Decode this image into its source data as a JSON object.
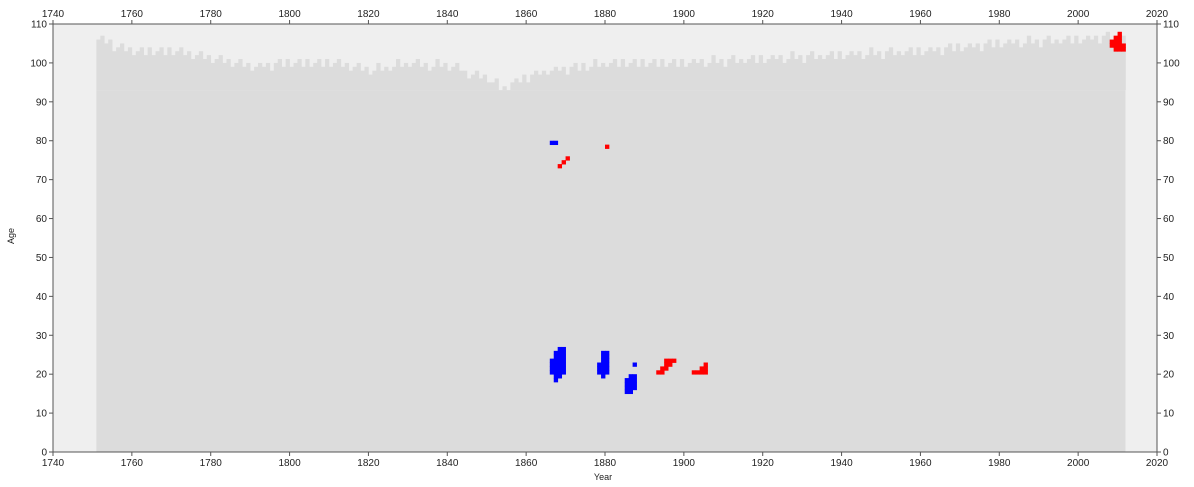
{
  "chart_data": {
    "type": "heatmap",
    "title": "",
    "xlabel": "Year",
    "ylabel": "Age",
    "xlim": [
      1740,
      2020
    ],
    "ylim": [
      0,
      110
    ],
    "x_ticks": [
      1740,
      1760,
      1780,
      1800,
      1820,
      1840,
      1860,
      1880,
      1900,
      1920,
      1940,
      1960,
      1980,
      2000,
      2020
    ],
    "y_ticks": [
      0,
      10,
      20,
      30,
      40,
      50,
      60,
      70,
      80,
      90,
      100,
      110
    ],
    "grid": false,
    "legend": "none",
    "colors": {
      "data_available": "#dcdcdc",
      "no_data": "#efefef",
      "positive_cluster": "#ff0000",
      "negative_cluster": "#0000ff",
      "axis": "#555555"
    },
    "data_coverage": {
      "years": [
        1751,
        2011
      ],
      "max_age_profile": [
        [
          1751,
          106
        ],
        [
          1760,
          103
        ],
        [
          1770,
          103
        ],
        [
          1780,
          101
        ],
        [
          1790,
          99
        ],
        [
          1800,
          100
        ],
        [
          1810,
          100
        ],
        [
          1820,
          98
        ],
        [
          1830,
          100
        ],
        [
          1840,
          99
        ],
        [
          1850,
          96
        ],
        [
          1854,
          93
        ],
        [
          1858,
          96
        ],
        [
          1865,
          98
        ],
        [
          1880,
          100
        ],
        [
          1900,
          100
        ],
        [
          1920,
          101
        ],
        [
          1940,
          102
        ],
        [
          1960,
          103
        ],
        [
          1980,
          105
        ],
        [
          2000,
          106
        ],
        [
          2011,
          107
        ]
      ]
    },
    "clusters": [
      {
        "color": "negative",
        "points": [
          [
            1866,
            79
          ],
          [
            1867,
            79
          ],
          [
            1867,
            18
          ],
          [
            1867,
            19
          ],
          [
            1867,
            20
          ],
          [
            1867,
            21
          ],
          [
            1867,
            22
          ],
          [
            1867,
            23
          ],
          [
            1867,
            24
          ],
          [
            1867,
            25
          ],
          [
            1868,
            19
          ],
          [
            1868,
            20
          ],
          [
            1868,
            21
          ],
          [
            1868,
            22
          ],
          [
            1868,
            23
          ],
          [
            1868,
            24
          ],
          [
            1868,
            25
          ],
          [
            1868,
            26
          ],
          [
            1869,
            20
          ],
          [
            1869,
            21
          ],
          [
            1869,
            22
          ],
          [
            1869,
            23
          ],
          [
            1869,
            24
          ],
          [
            1869,
            25
          ],
          [
            1869,
            26
          ],
          [
            1866,
            20
          ],
          [
            1866,
            21
          ],
          [
            1866,
            22
          ],
          [
            1866,
            23
          ]
        ]
      },
      {
        "color": "negative",
        "points": [
          [
            1878,
            20
          ],
          [
            1878,
            21
          ],
          [
            1878,
            22
          ],
          [
            1879,
            19
          ],
          [
            1879,
            20
          ],
          [
            1879,
            21
          ],
          [
            1879,
            22
          ],
          [
            1879,
            23
          ],
          [
            1879,
            24
          ],
          [
            1879,
            25
          ],
          [
            1880,
            20
          ],
          [
            1880,
            21
          ],
          [
            1880,
            22
          ],
          [
            1880,
            23
          ],
          [
            1880,
            24
          ],
          [
            1880,
            25
          ]
        ]
      },
      {
        "color": "negative",
        "points": [
          [
            1885,
            15
          ],
          [
            1885,
            16
          ],
          [
            1885,
            17
          ],
          [
            1885,
            18
          ],
          [
            1886,
            15
          ],
          [
            1886,
            16
          ],
          [
            1886,
            17
          ],
          [
            1886,
            18
          ],
          [
            1886,
            19
          ],
          [
            1887,
            16
          ],
          [
            1887,
            17
          ],
          [
            1887,
            18
          ],
          [
            1887,
            19
          ],
          [
            1887,
            22
          ]
        ]
      },
      {
        "color": "positive",
        "points": [
          [
            1868,
            73
          ],
          [
            1869,
            74
          ],
          [
            1870,
            75
          ],
          [
            1880,
            78
          ]
        ]
      },
      {
        "color": "positive",
        "points": [
          [
            1893,
            20
          ],
          [
            1894,
            20
          ],
          [
            1894,
            21
          ],
          [
            1895,
            21
          ],
          [
            1895,
            22
          ],
          [
            1895,
            23
          ],
          [
            1896,
            22
          ],
          [
            1896,
            23
          ],
          [
            1897,
            23
          ]
        ]
      },
      {
        "color": "positive",
        "points": [
          [
            1902,
            20
          ],
          [
            1903,
            20
          ],
          [
            1904,
            20
          ],
          [
            1904,
            21
          ],
          [
            1905,
            20
          ],
          [
            1905,
            21
          ],
          [
            1905,
            22
          ]
        ]
      },
      {
        "color": "positive",
        "points": [
          [
            2008,
            104
          ],
          [
            2008,
            105
          ],
          [
            2009,
            103
          ],
          [
            2009,
            104
          ],
          [
            2009,
            105
          ],
          [
            2009,
            106
          ],
          [
            2010,
            103
          ],
          [
            2010,
            104
          ],
          [
            2010,
            105
          ],
          [
            2010,
            106
          ],
          [
            2010,
            107
          ],
          [
            2011,
            103
          ],
          [
            2011,
            104
          ]
        ]
      }
    ]
  }
}
